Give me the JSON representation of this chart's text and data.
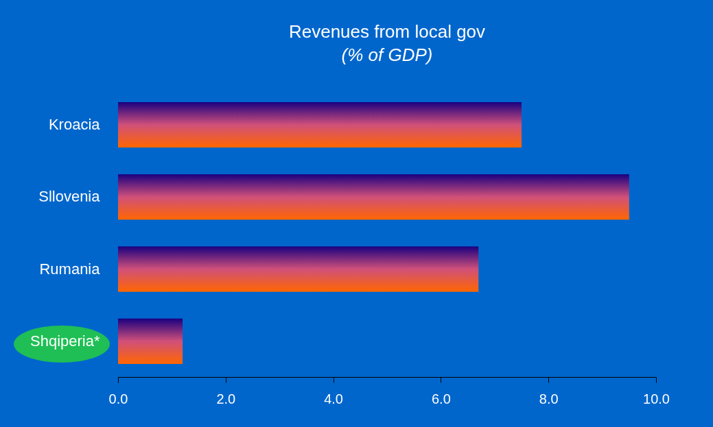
{
  "chart_data": {
    "type": "bar",
    "orientation": "horizontal",
    "title": "Revenues from local gov",
    "subtitle": "(% of GDP)",
    "categories": [
      "Kroacia",
      "Sllovenia",
      "Rumania",
      "Shqiperia*"
    ],
    "values": [
      7.5,
      9.5,
      6.7,
      1.2
    ],
    "color": "#ff6600",
    "xlim": [
      0,
      10
    ],
    "xticks": [
      {
        "value": 0,
        "label": "0.0"
      },
      {
        "value": 2,
        "label": "2.0"
      },
      {
        "value": 4,
        "label": "4.0"
      },
      {
        "value": 6,
        "label": "6.0"
      },
      {
        "value": 8,
        "label": "8.0"
      },
      {
        "value": 10,
        "label": "10.0"
      }
    ],
    "grid": false
  }
}
